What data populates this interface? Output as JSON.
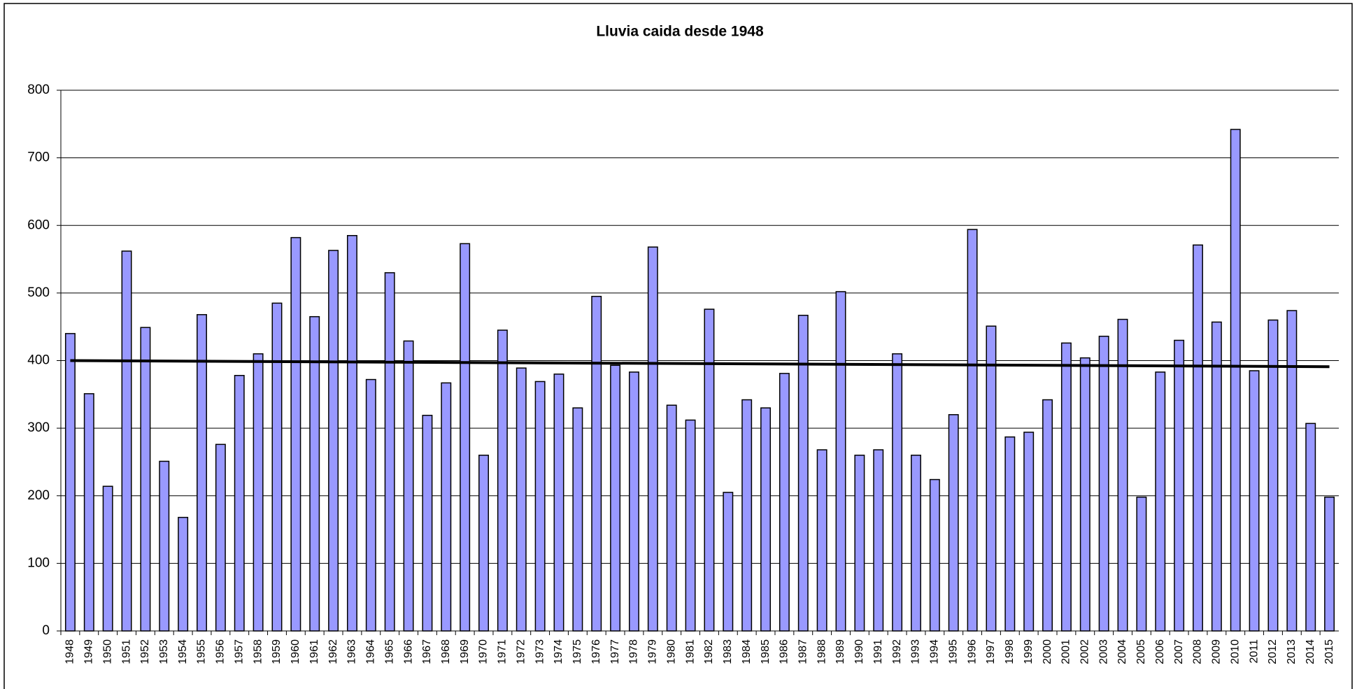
{
  "chart_data": {
    "type": "bar",
    "title": "Lluvia caida desde 1948",
    "categories": [
      "1948",
      "1949",
      "1950",
      "1951",
      "1952",
      "1953",
      "1954",
      "1955",
      "1956",
      "1957",
      "1958",
      "1959",
      "1960",
      "1961",
      "1962",
      "1963",
      "1964",
      "1965",
      "1966",
      "1967",
      "1968",
      "1969",
      "1970",
      "1971",
      "1972",
      "1973",
      "1974",
      "1975",
      "1976",
      "1977",
      "1978",
      "1979",
      "1980",
      "1981",
      "1982",
      "1983",
      "1984",
      "1985",
      "1986",
      "1987",
      "1988",
      "1989",
      "1990",
      "1991",
      "1992",
      "1993",
      "1994",
      "1995",
      "1996",
      "1997",
      "1998",
      "1999",
      "2000",
      "2001",
      "2002",
      "2003",
      "2004",
      "2005",
      "2006",
      "2007",
      "2008",
      "2009",
      "2010",
      "2011",
      "2012",
      "2013",
      "2014",
      "2015"
    ],
    "values": [
      440,
      351,
      214,
      562,
      449,
      251,
      168,
      468,
      276,
      378,
      410,
      485,
      582,
      465,
      563,
      585,
      372,
      530,
      429,
      319,
      367,
      573,
      260,
      445,
      389,
      369,
      380,
      330,
      495,
      393,
      383,
      568,
      334,
      312,
      476,
      205,
      342,
      330,
      381,
      467,
      268,
      502,
      260,
      268,
      410,
      260,
      224,
      320,
      594,
      451,
      287,
      294,
      342,
      426,
      404,
      436,
      461,
      198,
      383,
      430,
      571,
      457,
      742,
      385,
      460,
      474,
      307,
      198
    ],
    "color": "#9999ff",
    "trend": [
      400,
      391
    ],
    "trend_color": "#000000",
    "ylim": [
      0,
      800
    ],
    "yticks": [
      0,
      100,
      200,
      300,
      400,
      500,
      600,
      700,
      800
    ],
    "grid": true
  }
}
